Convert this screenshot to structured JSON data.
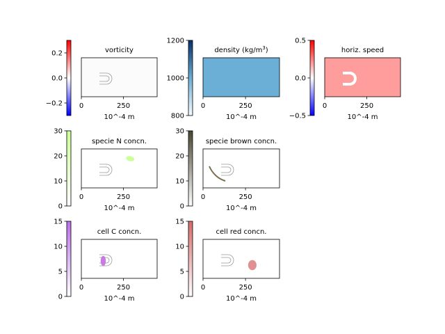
{
  "chart_data": [
    {
      "type": "heatmap",
      "title": "vorticity",
      "xlabel": "10^-4 m",
      "xticks": [
        0,
        250
      ],
      "xlim": [
        0,
        450
      ],
      "field": "uniform",
      "fill_color": "#fbfbfb",
      "colorbar": {
        "range": [
          -0.3,
          0.3
        ],
        "ticks": [
          "0.2",
          "0.0",
          "−0.2"
        ],
        "tick_values": [
          0.2,
          0.0,
          -0.2
        ],
        "colors": [
          "#0000ff",
          "#ffffff",
          "#ff0000"
        ]
      },
      "obstacle": true
    },
    {
      "type": "heatmap",
      "title": "density (kg/m",
      "title_sup": "3",
      "title_end": ")",
      "xlabel": "10^-4 m",
      "xticks": [
        0,
        250
      ],
      "xlim": [
        0,
        450
      ],
      "field": "uniform",
      "fill_color": "#6baed6",
      "colorbar": {
        "range": [
          800,
          1200
        ],
        "ticks": [
          "1200",
          "1000",
          "800"
        ],
        "tick_values": [
          1200,
          1000,
          800
        ],
        "colors": [
          "#f7fbff",
          "#6baed6",
          "#08306b"
        ]
      },
      "obstacle": false
    },
    {
      "type": "heatmap",
      "title": "horiz. speed",
      "xlabel": "10^-4 m",
      "xticks": [
        0,
        250
      ],
      "xlim": [
        0,
        450
      ],
      "field": "uniform",
      "fill_color": "#ff9c9c",
      "colorbar": {
        "range": [
          -0.5,
          0.5
        ],
        "ticks": [
          "0.5",
          "0.0",
          "−0.5"
        ],
        "tick_values": [
          0.5,
          0.0,
          -0.5
        ],
        "colors": [
          "#0000ff",
          "#ffffff",
          "#ff0000"
        ]
      },
      "obstacle": true,
      "obstacle_style": "white"
    },
    {
      "type": "heatmap",
      "title": "specie N concn.",
      "xlabel": "10^-4 m",
      "xticks": [
        0,
        250
      ],
      "xlim": [
        0,
        450
      ],
      "field": "blob",
      "fill_color": "#ffffff",
      "blob": {
        "color": "#ccff99",
        "cx": 290,
        "cy": 14,
        "rx": 45,
        "ry": 4,
        "rotate": 12
      },
      "colorbar": {
        "range": [
          0,
          30
        ],
        "ticks": [
          "30",
          "20",
          "10",
          "0"
        ],
        "tick_values": [
          30,
          20,
          10,
          0
        ],
        "colors": [
          "#ffffff",
          "#ccff99"
        ]
      },
      "obstacle": true
    },
    {
      "type": "heatmap",
      "title": "specie brown concn.",
      "xlabel": "10^-4 m",
      "xticks": [
        0,
        250
      ],
      "xlim": [
        0,
        450
      ],
      "field": "curve",
      "fill_color": "#ffffff",
      "curve": {
        "color": "#7a7050",
        "points": [
          [
            38,
            25
          ],
          [
            55,
            35
          ],
          [
            85,
            43
          ],
          [
            125,
            46
          ]
        ]
      },
      "colorbar": {
        "range": [
          0,
          30
        ],
        "ticks": [
          "30",
          "20",
          "10",
          "0"
        ],
        "tick_values": [
          30,
          20,
          10,
          0
        ],
        "colors": [
          "#ffffff",
          "#4a4530"
        ]
      },
      "obstacle": true
    },
    {
      "type": "heatmap",
      "title": "cell C concn.",
      "xlabel": "10^-4 m",
      "xticks": [
        0,
        250
      ],
      "xlim": [
        0,
        450
      ],
      "field": "blob",
      "fill_color": "#ffffff",
      "blob": {
        "color": "#cc77ee",
        "cx": 130,
        "cy": 31,
        "rx": 28,
        "ry": 8,
        "rotate": 0
      },
      "colorbar": {
        "range": [
          0,
          15
        ],
        "ticks": [
          "15",
          "10",
          "5",
          "0"
        ],
        "tick_values": [
          15,
          10,
          5,
          0
        ],
        "colors": [
          "#ffffff",
          "#b86ee8"
        ]
      },
      "obstacle": true
    },
    {
      "type": "heatmap",
      "title": "cell red concn.",
      "xlabel": "10^-4 m",
      "xticks": [
        0,
        250
      ],
      "xlim": [
        0,
        450
      ],
      "field": "blob",
      "fill_color": "#ffffff",
      "blob": {
        "color": "#e09090",
        "cx": 290,
        "cy": 37,
        "rx": 45,
        "ry": 8,
        "rotate": 0
      },
      "colorbar": {
        "range": [
          0,
          15
        ],
        "ticks": [
          "15",
          "10",
          "5",
          "0"
        ],
        "tick_values": [
          15,
          10,
          5,
          0
        ],
        "colors": [
          "#ffffff",
          "#d96a6a"
        ]
      },
      "obstacle": true
    }
  ]
}
